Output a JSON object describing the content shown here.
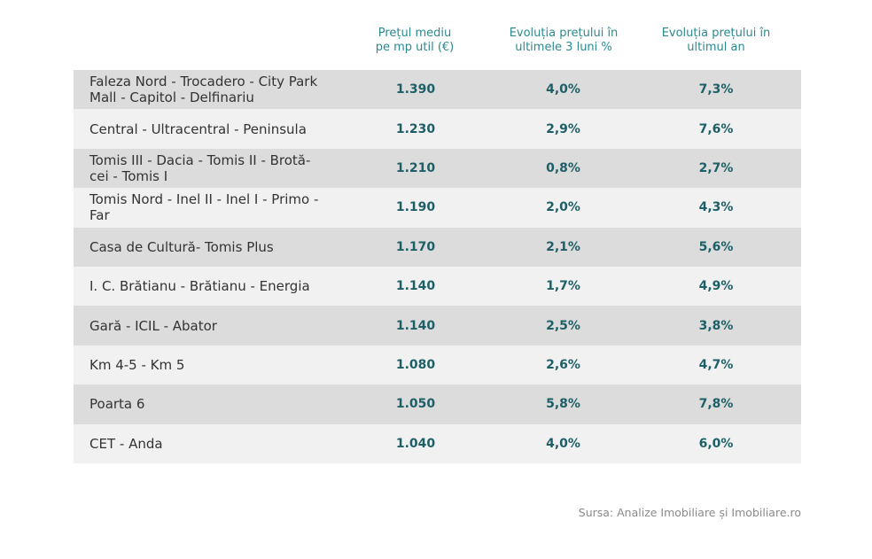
{
  "header": {
    "col1": [
      "Prețul mediu",
      "pe mp util (€)"
    ],
    "col2": [
      "Evoluția prețului în",
      "ultimele 3 luni %"
    ],
    "col3": [
      "Evoluția prețului în",
      "ultimul an"
    ]
  },
  "rows": [
    {
      "zone": [
        "Faleza Nord - Trocadero - City Park",
        "Mall - Capitol - Delfinariu"
      ],
      "price": "1.390",
      "change_3m": "4,0%",
      "change_1y": "7,3%"
    },
    {
      "zone": [
        "Central - Ultracentral - Peninsula"
      ],
      "price": "1.230",
      "change_3m": "2,9%",
      "change_1y": "7,6%"
    },
    {
      "zone": [
        "Tomis III - Dacia - Tomis II - Brotă-",
        "cei - Tomis I"
      ],
      "price": "1.210",
      "change_3m": "0,8%",
      "change_1y": "2,7%"
    },
    {
      "zone": [
        "Tomis Nord - Inel II - Inel I - Primo -",
        "Far"
      ],
      "price": "1.190",
      "change_3m": "2,0%",
      "change_1y": "4,3%"
    },
    {
      "zone": [
        "Casa de Cultură- Tomis Plus"
      ],
      "price": "1.170",
      "change_3m": "2,1%",
      "change_1y": "5,6%"
    },
    {
      "zone": [
        "I. C. Brătianu - Brătianu - Energia"
      ],
      "price": "1.140",
      "change_3m": "1,7%",
      "change_1y": "4,9%"
    },
    {
      "zone": [
        "Gară - ICIL - Abator"
      ],
      "price": "1.140",
      "change_3m": "2,5%",
      "change_1y": "3,8%"
    },
    {
      "zone": [
        "Km 4-5 - Km 5"
      ],
      "price": "1.080",
      "change_3m": "2,6%",
      "change_1y": "4,7%"
    },
    {
      "zone": [
        "Poarta 6"
      ],
      "price": "1.050",
      "change_3m": "5,8%",
      "change_1y": "7,8%"
    },
    {
      "zone": [
        "CET - Anda"
      ],
      "price": "1.040",
      "change_3m": "4,0%",
      "change_1y": "6,0%"
    }
  ],
  "source": "Sursa: Analize Imobiliare și Imobiliare.ro",
  "colors": {
    "header_text": "#2a8a8f",
    "value_text": "#1d5f66",
    "row_dark": "#dcdcdc",
    "row_light": "#f1f1f1"
  }
}
